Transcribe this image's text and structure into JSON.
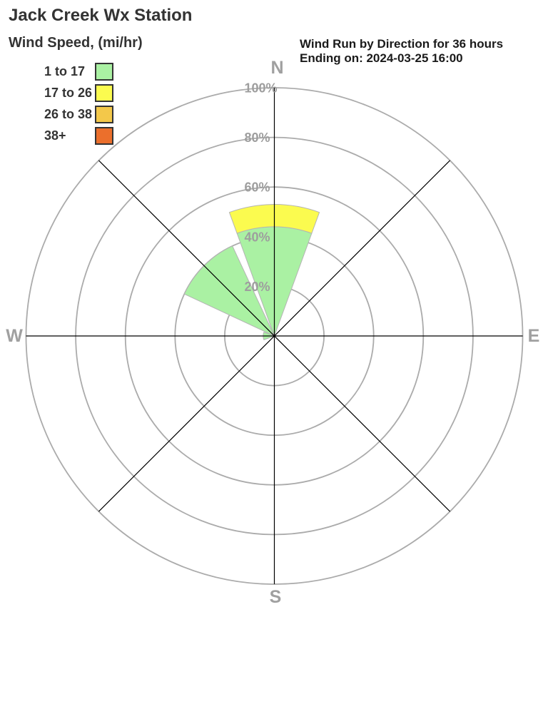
{
  "page": {
    "title": "Jack Creek Wx Station"
  },
  "legend": {
    "title": "Wind Speed, (mi/hr)",
    "items": [
      {
        "label": "1 to 17",
        "color": "#aaf1a3"
      },
      {
        "label": "17 to 26",
        "color": "#fbfb4f"
      },
      {
        "label": "26 to 38",
        "color": "#f3c84a"
      },
      {
        "label": "38+",
        "color": "#eb6f2c"
      }
    ]
  },
  "header": {
    "line1": "Wind Run by Direction for 36 hours",
    "line2": "Ending on: 2024-03-25 16:00"
  },
  "chart_data": {
    "type": "windrose-stacked-polar-bar",
    "title": "Wind Run by Direction for 36 hours Ending on: 2024-03-25 16:00",
    "units": "% of wind run",
    "directions": [
      "N",
      "NE",
      "E",
      "SE",
      "S",
      "SW",
      "W",
      "NW"
    ],
    "compass_labels": {
      "n": "N",
      "e": "E",
      "s": "S",
      "w": "W"
    },
    "series": [
      {
        "name": "1 to 17",
        "color": "#aaf1a3",
        "values": [
          44,
          0,
          0,
          0,
          0,
          0,
          4.5,
          40
        ]
      },
      {
        "name": "17 to 26",
        "color": "#fbfb4f",
        "values": [
          9,
          0,
          0,
          0,
          0,
          0,
          0,
          0
        ]
      },
      {
        "name": "26 to 38",
        "color": "#f3c84a",
        "values": [
          0,
          0,
          0,
          0,
          0,
          0,
          0,
          0
        ]
      },
      {
        "name": "38+",
        "color": "#eb6f2c",
        "values": [
          0,
          0,
          0,
          0,
          0,
          0,
          0,
          0
        ]
      }
    ],
    "rings": [
      {
        "pct": 20,
        "label": "20%"
      },
      {
        "pct": 40,
        "label": "40%"
      },
      {
        "pct": 60,
        "label": "60%"
      },
      {
        "pct": 80,
        "label": "80%"
      },
      {
        "pct": 100,
        "label": "100%"
      }
    ],
    "rlim": [
      0,
      100
    ],
    "petal_width_deg": 40,
    "grid": true,
    "legend_position": "top-left",
    "colors": {
      "grid": "#ababab",
      "axis": "#000000",
      "labels": "#9e9e9e"
    }
  }
}
